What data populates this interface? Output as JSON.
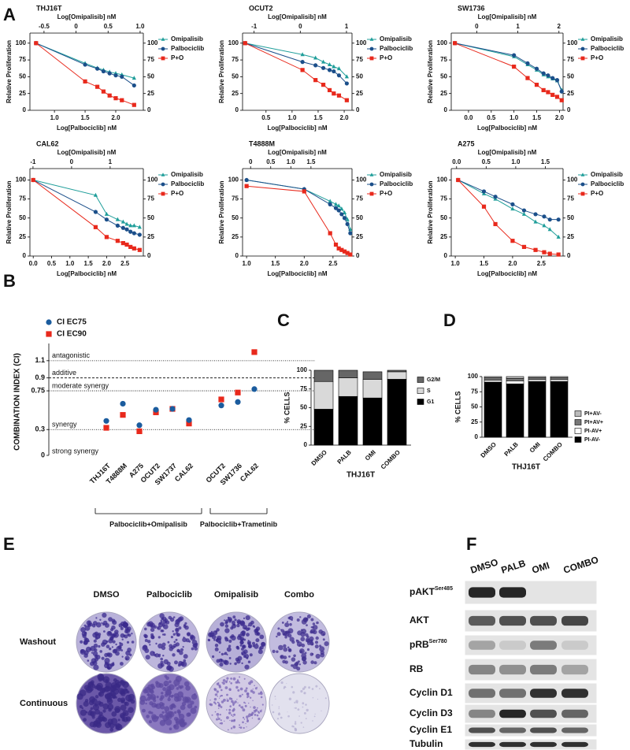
{
  "panel_labels": [
    "A",
    "B",
    "C",
    "D",
    "E",
    "F"
  ],
  "chart_data": [
    {
      "type": "dose-response",
      "title": "THJ16T",
      "xlabel": "Log[Palbociclib] nM",
      "x2label": "Log[Omipalisib] nM",
      "ylabel": "Relative Proliferation",
      "xlim": [
        0.6,
        2.45
      ],
      "xticks": [
        {
          "value": 1,
          "label": "1.0"
        },
        1.5,
        {
          "value": 2,
          "label": "2.0"
        }
      ],
      "x2lim": [
        -0.72,
        1.05
      ],
      "x2ticks": [
        -0.5,
        0,
        0.5,
        {
          "value": 1,
          "label": "1.0"
        }
      ],
      "ylim": [
        0,
        115
      ],
      "yticks": [
        0,
        25,
        50,
        75,
        100
      ],
      "y2lim": [
        0,
        115
      ],
      "y2ticks": [
        0,
        25,
        50,
        75,
        100
      ],
      "x": [
        0.7,
        1.5,
        1.7,
        1.8,
        1.9,
        2.0,
        2.1,
        2.3
      ],
      "series": [
        {
          "name": "Omipalisib",
          "color": "#1f9e9a",
          "marker": "triangle",
          "values": [
            100,
            70,
            63,
            60,
            57,
            55,
            53,
            48
          ]
        },
        {
          "name": "Palbociclib",
          "color": "#1b4f8a",
          "marker": "circle",
          "values": [
            100,
            68,
            62,
            58,
            55,
            52,
            50,
            37
          ]
        },
        {
          "name": "P+O",
          "color": "#e8291c",
          "marker": "square",
          "values": [
            100,
            43,
            35,
            28,
            22,
            18,
            15,
            8
          ]
        }
      ]
    },
    {
      "type": "dose-response",
      "title": "OCUT2",
      "xlabel": "Log[Palbociclib] nM",
      "x2label": "Log[Omipalisib] nM",
      "ylabel": "Relative Proliferation",
      "xlim": [
        0.05,
        2.15
      ],
      "xticks": [
        0.5,
        {
          "value": 1,
          "label": "1.0"
        },
        1.5,
        {
          "value": 2,
          "label": "2.0"
        }
      ],
      "x2lim": [
        -1.25,
        1.12
      ],
      "x2ticks": [
        -1,
        0,
        1
      ],
      "ylim": [
        0,
        115
      ],
      "yticks": [
        0,
        25,
        50,
        75,
        100
      ],
      "y2lim": [
        0,
        115
      ],
      "y2ticks": [
        0,
        25,
        50,
        75,
        100
      ],
      "x": [
        0.1,
        1.2,
        1.45,
        1.6,
        1.72,
        1.8,
        1.9,
        2.05
      ],
      "series": [
        {
          "name": "Omipalisib",
          "color": "#1f9e9a",
          "marker": "triangle",
          "values": [
            100,
            83,
            78,
            72,
            68,
            65,
            62,
            50
          ]
        },
        {
          "name": "Palbociclib",
          "color": "#1b4f8a",
          "marker": "circle",
          "values": [
            100,
            72,
            67,
            63,
            60,
            58,
            52,
            40
          ]
        },
        {
          "name": "P+O",
          "color": "#e8291c",
          "marker": "square",
          "values": [
            100,
            60,
            45,
            38,
            30,
            25,
            22,
            15
          ]
        }
      ]
    },
    {
      "type": "dose-response",
      "title": "SW1736",
      "xlabel": "Log[Palbociclib] nM",
      "x2label": "Log[Omipalisib] nM",
      "ylabel": "Relative Proliferation",
      "xlim": [
        -0.38,
        2.08
      ],
      "xticks": [
        {
          "value": 0,
          "label": "0.0"
        },
        0.5,
        {
          "value": 1,
          "label": "1.0"
        },
        1.5,
        {
          "value": 2,
          "label": "2.0"
        }
      ],
      "x2lim": [
        -0.62,
        2.1
      ],
      "x2ticks": [
        0,
        1,
        2
      ],
      "ylim": [
        0,
        115
      ],
      "yticks": [
        0,
        25,
        50,
        75,
        100
      ],
      "y2lim": [
        0,
        115
      ],
      "y2ticks": [
        0,
        25,
        50,
        75,
        100
      ],
      "x": [
        -0.3,
        1.0,
        1.3,
        1.5,
        1.65,
        1.75,
        1.85,
        1.95,
        2.05
      ],
      "series": [
        {
          "name": "Omipalisib",
          "color": "#1f9e9a",
          "marker": "triangle",
          "values": [
            100,
            80,
            68,
            60,
            53,
            50,
            47,
            44,
            30
          ]
        },
        {
          "name": "Palbociclib",
          "color": "#1b4f8a",
          "marker": "circle",
          "values": [
            100,
            82,
            70,
            62,
            55,
            52,
            48,
            45,
            28
          ]
        },
        {
          "name": "P+O",
          "color": "#e8291c",
          "marker": "square",
          "values": [
            100,
            65,
            48,
            38,
            30,
            27,
            23,
            20,
            15
          ]
        }
      ]
    },
    {
      "type": "dose-response",
      "title": "CAL62",
      "xlabel": "Log[Palbociclib] nM",
      "x2label": "Log[Omipalisib] nM",
      "ylabel": "Relative Proliferation",
      "xlim": [
        -0.09,
        3.0
      ],
      "xticks": [
        {
          "value": 0,
          "label": "0.0"
        },
        0.5,
        {
          "value": 1,
          "label": "1.0"
        },
        1.5,
        {
          "value": 2,
          "label": "2.0"
        },
        2.5
      ],
      "x2lim": [
        -1.08,
        1.86
      ],
      "x2ticks": [
        -1,
        0,
        1
      ],
      "ylim": [
        0,
        115
      ],
      "yticks": [
        0,
        25,
        50,
        75,
        100
      ],
      "y2lim": [
        0,
        115
      ],
      "y2ticks": [
        0,
        25,
        50,
        75,
        100
      ],
      "x": [
        0,
        1.7,
        2.0,
        2.3,
        2.45,
        2.55,
        2.65,
        2.75,
        2.9
      ],
      "series": [
        {
          "name": "Omipalisib",
          "color": "#1f9e9a",
          "marker": "triangle",
          "values": [
            100,
            80,
            55,
            48,
            45,
            42,
            40,
            40,
            38
          ]
        },
        {
          "name": "Palbociclib",
          "color": "#1b4f8a",
          "marker": "circle",
          "values": [
            100,
            58,
            48,
            40,
            37,
            35,
            32,
            30,
            28
          ]
        },
        {
          "name": "P+O",
          "color": "#e8291c",
          "marker": "square",
          "values": [
            100,
            38,
            25,
            20,
            17,
            15,
            12,
            10,
            8
          ]
        }
      ]
    },
    {
      "type": "dose-response",
      "title": "T4888M",
      "xlabel": "Log[Palbociclib] nM",
      "x2label": "Log[Omipalisib] nM",
      "ylabel": "Relative Proliferation",
      "xlim": [
        0.93,
        2.83
      ],
      "xticks": [
        {
          "value": 1,
          "label": "1.0"
        },
        1.5,
        {
          "value": 2,
          "label": "2.0"
        },
        2.5
      ],
      "x2lim": [
        -0.2,
        2.52
      ],
      "x2ticks": [
        0,
        0.5,
        {
          "value": 1,
          "label": "1.0"
        },
        1.5
      ],
      "ylim": [
        0,
        115
      ],
      "yticks": [
        0,
        25,
        50,
        75,
        100
      ],
      "y2lim": [
        0,
        115
      ],
      "y2ticks": [
        0,
        25,
        50,
        75,
        100
      ],
      "x": [
        1.0,
        2.0,
        2.45,
        2.55,
        2.6,
        2.65,
        2.7,
        2.75,
        2.8
      ],
      "series": [
        {
          "name": "Omipalisib",
          "color": "#1f9e9a",
          "marker": "triangle",
          "values": [
            100,
            88,
            72,
            68,
            66,
            62,
            57,
            48,
            35
          ]
        },
        {
          "name": "Palbociclib",
          "color": "#1b4f8a",
          "marker": "circle",
          "values": [
            100,
            88,
            68,
            63,
            60,
            55,
            50,
            42,
            30
          ]
        },
        {
          "name": "P+O",
          "color": "#e8291c",
          "marker": "square",
          "values": [
            92,
            85,
            30,
            15,
            10,
            8,
            6,
            4,
            2
          ]
        }
      ]
    },
    {
      "type": "dose-response",
      "title": "A275",
      "xlabel": "Log[Palbociclib] nM",
      "x2label": "Log[Omipalisib] nM",
      "ylabel": "Relative Proliferation",
      "xlim": [
        0.93,
        2.88
      ],
      "xticks": [
        {
          "value": 1,
          "label": "1.0"
        },
        1.5,
        {
          "value": 2,
          "label": "2.0"
        },
        2.5
      ],
      "x2lim": [
        -0.09,
        1.8
      ],
      "x2ticks": [
        {
          "value": 0,
          "label": "0.0"
        },
        0.5,
        {
          "value": 1,
          "label": "1.0"
        },
        1.5
      ],
      "ylim": [
        0,
        115
      ],
      "yticks": [
        0,
        25,
        50,
        75,
        100
      ],
      "y2lim": [
        0,
        115
      ],
      "y2ticks": [
        0,
        25,
        50,
        75,
        100
      ],
      "x": [
        1.05,
        1.5,
        1.7,
        2.0,
        2.2,
        2.4,
        2.55,
        2.65,
        2.8
      ],
      "series": [
        {
          "name": "Omipalisib",
          "color": "#1f9e9a",
          "marker": "triangle",
          "values": [
            100,
            82,
            75,
            62,
            55,
            45,
            40,
            35,
            25
          ]
        },
        {
          "name": "Palbociclib",
          "color": "#1b4f8a",
          "marker": "circle",
          "values": [
            100,
            85,
            78,
            68,
            60,
            55,
            52,
            48,
            48
          ]
        },
        {
          "name": "P+O",
          "color": "#e8291c",
          "marker": "square",
          "values": [
            100,
            65,
            42,
            20,
            12,
            8,
            5,
            3,
            2
          ]
        }
      ]
    },
    {
      "type": "scatter",
      "ylabel": "COMBINATION INDEX (CI)",
      "categories": [
        "THJ16T",
        "T4888M",
        "A275",
        "OCUT2",
        "SW1737",
        "CAL62",
        "OCUT2",
        "SW1736",
        "CAL62"
      ],
      "groups": [
        {
          "name": "Palbociclib+Omipalisib",
          "span": [
            0,
            5
          ]
        },
        {
          "name": "Palbociclib+Trametinib",
          "span": [
            6,
            8
          ]
        }
      ],
      "ylim": [
        0,
        1.3
      ],
      "yticks": [
        0,
        0.3,
        0.75,
        0.9,
        1.1
      ],
      "reference_lines": [
        {
          "y": 1.1,
          "label": "antagonistic",
          "style": "dotted"
        },
        {
          "y": 0.9,
          "label": "additive",
          "style": "dashed"
        },
        {
          "y": 0.75,
          "label": "moderate synergy",
          "style": "dotted"
        },
        {
          "y": 0.3,
          "label": "synergy",
          "style": "dotted"
        }
      ],
      "annotations": [
        "strong synergy"
      ],
      "series": [
        {
          "name": "CI EC75",
          "color": "#1b5c9e",
          "marker": "circle",
          "values": [
            0.4,
            0.6,
            0.35,
            0.53,
            0.54,
            0.41,
            0.58,
            0.62,
            0.77
          ]
        },
        {
          "name": "CI EC90",
          "color": "#e8291c",
          "marker": "square",
          "values": [
            0.32,
            0.47,
            0.28,
            0.5,
            0.54,
            0.37,
            0.65,
            0.73,
            1.2
          ]
        }
      ]
    },
    {
      "type": "stacked-bar",
      "xlabel": "THJ16T",
      "ylabel": "% CELLS",
      "categories": [
        "DMSO",
        "PALB",
        "OMI",
        "COMBO"
      ],
      "ylim": [
        0,
        100
      ],
      "yticks": [
        0,
        25,
        50,
        75,
        100
      ],
      "series": [
        {
          "name": "G1",
          "color": "#000000",
          "values": [
            48,
            65,
            63,
            88
          ]
        },
        {
          "name": "S",
          "color": "#d9d9d9",
          "values": [
            37,
            25,
            25,
            10
          ]
        },
        {
          "name": "G2/M",
          "color": "#666666",
          "values": [
            15,
            10,
            10,
            2
          ]
        }
      ]
    },
    {
      "type": "stacked-bar",
      "xlabel": "THJ16T",
      "ylabel": "% CELLS",
      "categories": [
        "DMSO",
        "PALB",
        "OMI",
        "COMBO"
      ],
      "ylim": [
        0,
        100
      ],
      "yticks": [
        0,
        25,
        50,
        75,
        100
      ],
      "series": [
        {
          "name": "PI-AV-",
          "color": "#000000",
          "values": [
            91,
            88,
            92,
            92
          ]
        },
        {
          "name": "PI-AV+",
          "color": "#ffffff",
          "values": [
            3,
            5,
            3,
            3
          ]
        },
        {
          "name": "PI+AV+",
          "color": "#777777",
          "values": [
            4,
            4,
            3,
            3
          ]
        },
        {
          "name": "PI+AV-",
          "color": "#bbbbbb",
          "values": [
            2,
            3,
            2,
            2
          ]
        }
      ]
    }
  ],
  "colony_assay": {
    "columns": [
      "DMSO",
      "Palbociclib",
      "Omipalisib",
      "Combo"
    ],
    "rows": [
      "Washout",
      "Continuous"
    ]
  },
  "western_blot": {
    "lanes": [
      "DMSO",
      "PALB",
      "OMI",
      "COMBO"
    ],
    "rows": [
      {
        "label": "pAKT",
        "sup": "Ser485"
      },
      {
        "label": "AKT"
      },
      {
        "label": "pRB",
        "sup": "Ser780"
      },
      {
        "label": "RB"
      },
      {
        "label": "Cyclin D1"
      },
      {
        "label": "Cyclin D3"
      },
      {
        "label": "Cyclin E1"
      },
      {
        "label": "Tubulin"
      }
    ]
  }
}
